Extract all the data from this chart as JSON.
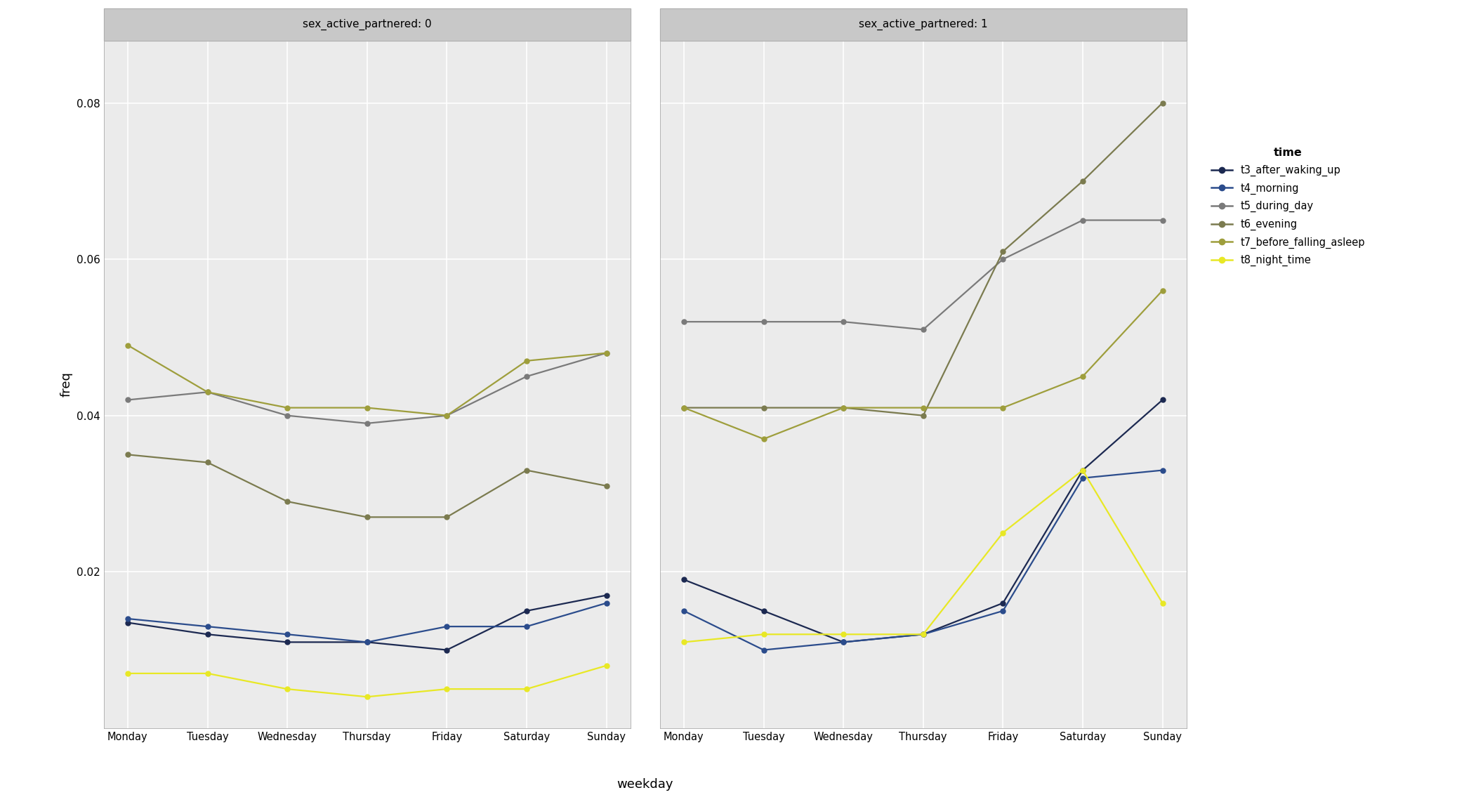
{
  "weekdays": [
    "Monday",
    "Tuesday",
    "Wednesday",
    "Thursday",
    "Friday",
    "Saturday",
    "Sunday"
  ],
  "panel0_title": "sex_active_partnered: 0",
  "panel1_title": "sex_active_partnered: 1",
  "series": [
    {
      "name": "t3_after_waking_up",
      "color": "#1C2951",
      "panel0": [
        0.0135,
        0.012,
        0.011,
        0.011,
        0.01,
        0.015,
        0.017
      ],
      "panel1": [
        0.019,
        0.015,
        0.011,
        0.012,
        0.016,
        0.033,
        0.042
      ]
    },
    {
      "name": "t4_morning",
      "color": "#2B4C8C",
      "panel0": [
        0.014,
        0.013,
        0.012,
        0.011,
        0.013,
        0.013,
        0.016
      ],
      "panel1": [
        0.015,
        0.01,
        0.011,
        0.012,
        0.015,
        0.032,
        0.033
      ]
    },
    {
      "name": "t5_during_day",
      "color": "#7A7A7A",
      "panel0": [
        0.042,
        0.043,
        0.04,
        0.039,
        0.04,
        0.045,
        0.048
      ],
      "panel1": [
        0.052,
        0.052,
        0.052,
        0.051,
        0.06,
        0.065,
        0.065
      ]
    },
    {
      "name": "t6_evening",
      "color": "#7B7B4F",
      "panel0": [
        0.035,
        0.034,
        0.029,
        0.027,
        0.027,
        0.033,
        0.031
      ],
      "panel1": [
        0.041,
        0.041,
        0.041,
        0.04,
        0.061,
        0.07,
        0.08
      ]
    },
    {
      "name": "t7_before_falling_asleep",
      "color": "#9E9E3C",
      "panel0": [
        0.049,
        0.043,
        0.041,
        0.041,
        0.04,
        0.047,
        0.048
      ],
      "panel1": [
        0.041,
        0.037,
        0.041,
        0.041,
        0.041,
        0.045,
        0.056
      ]
    },
    {
      "name": "t8_night_time",
      "color": "#E8E825",
      "panel0": [
        0.007,
        0.007,
        0.005,
        0.004,
        0.005,
        0.005,
        0.008
      ],
      "panel1": [
        0.011,
        0.012,
        0.012,
        0.012,
        0.025,
        0.033,
        0.016
      ]
    }
  ],
  "xlabel": "weekday",
  "ylabel": "freq",
  "ylim": [
    0.0,
    0.088
  ],
  "yticks": [
    0.02,
    0.04,
    0.06,
    0.08
  ],
  "legend_title": "time",
  "bg_color": "#FFFFFF",
  "panel_bg": "#EBEBEB",
  "grid_color": "#FFFFFF",
  "strip_bg": "#C8C8C8",
  "strip_text_color": "#000000"
}
